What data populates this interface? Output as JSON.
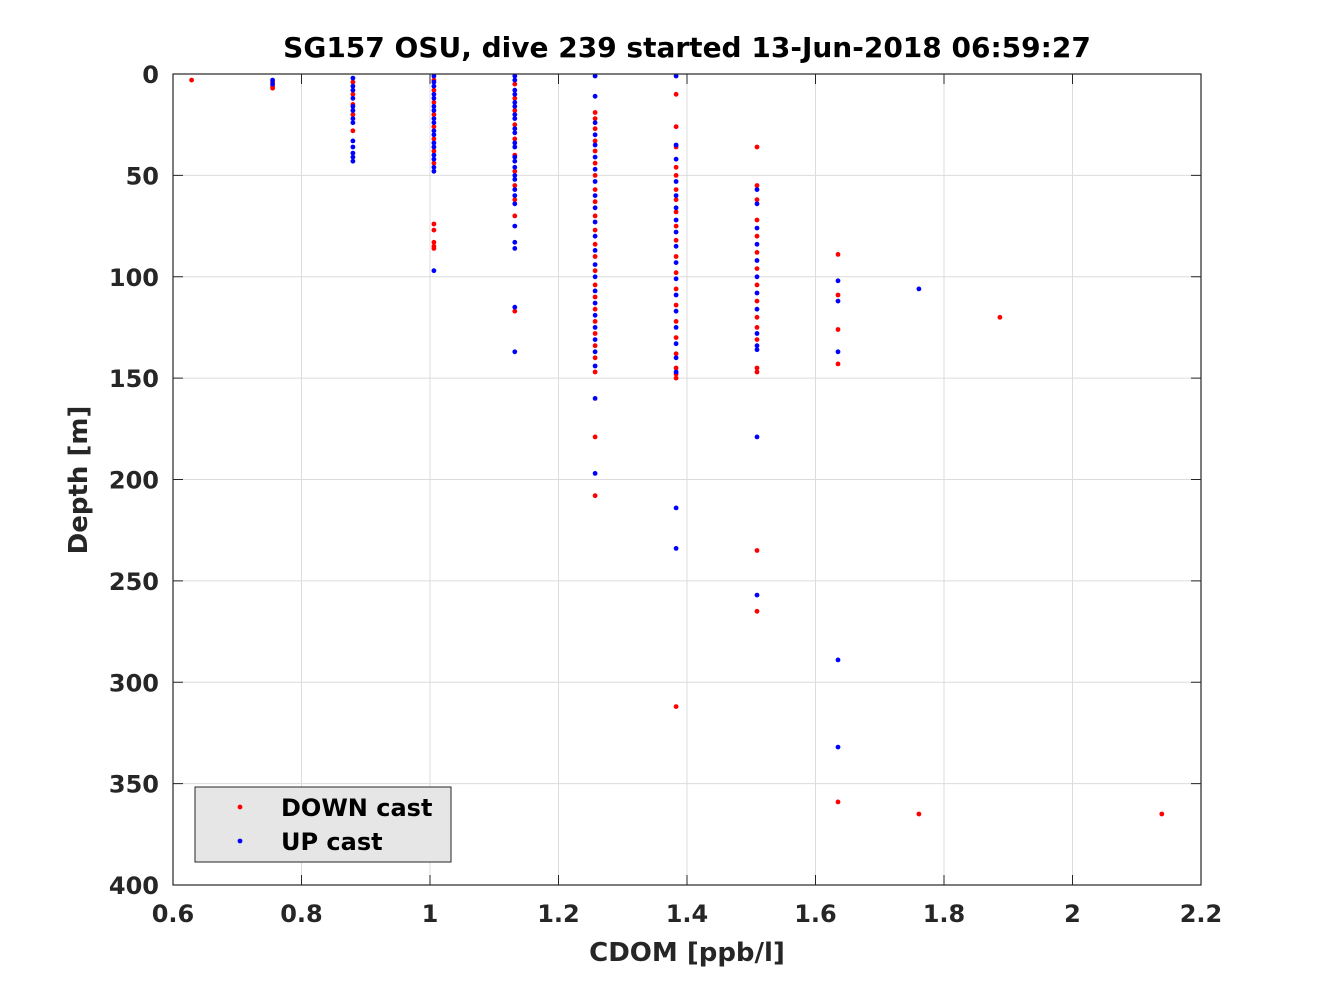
{
  "chart_data": {
    "type": "scatter",
    "title": "SG157 OSU, dive 239 started 13-Jun-2018 06:59:27",
    "xlabel": "CDOM [ppb/l]",
    "ylabel": "Depth [m]",
    "xlim": [
      0.6,
      2.2
    ],
    "ylim": [
      0,
      400
    ],
    "y_reversed": true,
    "grid": true,
    "legend_position": "bottom-left",
    "xticks": [
      0.6,
      0.8,
      1.0,
      1.2,
      1.4,
      1.6,
      1.8,
      2.0,
      2.2
    ],
    "xtick_labels": [
      "0.6",
      "0.8",
      "1",
      "1.2",
      "1.4",
      "1.6",
      "1.8",
      "2",
      "2.2"
    ],
    "yticks": [
      0,
      50,
      100,
      150,
      200,
      250,
      300,
      350,
      400
    ],
    "ytick_labels": [
      "0",
      "50",
      "100",
      "150",
      "200",
      "250",
      "300",
      "350",
      "400"
    ],
    "series": [
      {
        "name": "DOWN cast",
        "color": "#ff0000",
        "points": [
          [
            0.629,
            3
          ],
          [
            0.755,
            4
          ],
          [
            0.755,
            6
          ],
          [
            0.755,
            7
          ],
          [
            0.88,
            4
          ],
          [
            0.88,
            10
          ],
          [
            0.88,
            15
          ],
          [
            0.88,
            20
          ],
          [
            0.88,
            28
          ],
          [
            1.006,
            3
          ],
          [
            1.006,
            8
          ],
          [
            1.006,
            14
          ],
          [
            1.006,
            20
          ],
          [
            1.006,
            26
          ],
          [
            1.006,
            32
          ],
          [
            1.006,
            38
          ],
          [
            1.006,
            44
          ],
          [
            1.006,
            74
          ],
          [
            1.006,
            77
          ],
          [
            1.006,
            83
          ],
          [
            1.006,
            85
          ],
          [
            1.006,
            86
          ],
          [
            1.132,
            5
          ],
          [
            1.132,
            12
          ],
          [
            1.132,
            18
          ],
          [
            1.132,
            25
          ],
          [
            1.132,
            32
          ],
          [
            1.132,
            40
          ],
          [
            1.132,
            48
          ],
          [
            1.132,
            55
          ],
          [
            1.132,
            62
          ],
          [
            1.132,
            70
          ],
          [
            1.132,
            117
          ],
          [
            1.257,
            19
          ],
          [
            1.257,
            22
          ],
          [
            1.257,
            27
          ],
          [
            1.257,
            33
          ],
          [
            1.257,
            38
          ],
          [
            1.257,
            44
          ],
          [
            1.257,
            50
          ],
          [
            1.257,
            57
          ],
          [
            1.257,
            63
          ],
          [
            1.257,
            70
          ],
          [
            1.257,
            77
          ],
          [
            1.257,
            84
          ],
          [
            1.257,
            90
          ],
          [
            1.257,
            97
          ],
          [
            1.257,
            104
          ],
          [
            1.257,
            110
          ],
          [
            1.257,
            116
          ],
          [
            1.257,
            122
          ],
          [
            1.257,
            128
          ],
          [
            1.257,
            134
          ],
          [
            1.257,
            140
          ],
          [
            1.257,
            147
          ],
          [
            1.257,
            179
          ],
          [
            1.257,
            208
          ],
          [
            1.383,
            10
          ],
          [
            1.383,
            26
          ],
          [
            1.383,
            36
          ],
          [
            1.383,
            46
          ],
          [
            1.383,
            50
          ],
          [
            1.383,
            57
          ],
          [
            1.383,
            62
          ],
          [
            1.383,
            68
          ],
          [
            1.383,
            75
          ],
          [
            1.383,
            82
          ],
          [
            1.383,
            90
          ],
          [
            1.383,
            98
          ],
          [
            1.383,
            106
          ],
          [
            1.383,
            114
          ],
          [
            1.383,
            122
          ],
          [
            1.383,
            130
          ],
          [
            1.383,
            138
          ],
          [
            1.383,
            145
          ],
          [
            1.383,
            148
          ],
          [
            1.383,
            150
          ],
          [
            1.383,
            312
          ],
          [
            1.509,
            36
          ],
          [
            1.509,
            55
          ],
          [
            1.509,
            62
          ],
          [
            1.509,
            72
          ],
          [
            1.509,
            80
          ],
          [
            1.509,
            88
          ],
          [
            1.509,
            96
          ],
          [
            1.509,
            104
          ],
          [
            1.509,
            112
          ],
          [
            1.509,
            120
          ],
          [
            1.509,
            125
          ],
          [
            1.509,
            131
          ],
          [
            1.509,
            145
          ],
          [
            1.509,
            147
          ],
          [
            1.509,
            235
          ],
          [
            1.509,
            265
          ],
          [
            1.635,
            89
          ],
          [
            1.635,
            109
          ],
          [
            1.635,
            126
          ],
          [
            1.635,
            143
          ],
          [
            1.635,
            359
          ],
          [
            1.761,
            365
          ],
          [
            1.887,
            120
          ],
          [
            2.139,
            365
          ]
        ]
      },
      {
        "name": "UP cast",
        "color": "#0000ff",
        "points": [
          [
            0.755,
            3
          ],
          [
            0.755,
            5
          ],
          [
            0.88,
            2
          ],
          [
            0.88,
            6
          ],
          [
            0.88,
            8
          ],
          [
            0.88,
            12
          ],
          [
            0.88,
            16
          ],
          [
            0.88,
            18
          ],
          [
            0.88,
            22
          ],
          [
            0.88,
            24
          ],
          [
            0.88,
            33
          ],
          [
            0.88,
            36
          ],
          [
            0.88,
            39
          ],
          [
            0.88,
            41
          ],
          [
            0.88,
            43
          ],
          [
            1.006,
            1
          ],
          [
            1.006,
            4
          ],
          [
            1.006,
            6
          ],
          [
            1.006,
            10
          ],
          [
            1.006,
            12
          ],
          [
            1.006,
            16
          ],
          [
            1.006,
            18
          ],
          [
            1.006,
            22
          ],
          [
            1.006,
            24
          ],
          [
            1.006,
            28
          ],
          [
            1.006,
            30
          ],
          [
            1.006,
            34
          ],
          [
            1.006,
            36
          ],
          [
            1.006,
            40
          ],
          [
            1.006,
            42
          ],
          [
            1.006,
            46
          ],
          [
            1.006,
            48
          ],
          [
            1.006,
            97
          ],
          [
            1.132,
            1
          ],
          [
            1.132,
            3
          ],
          [
            1.132,
            8
          ],
          [
            1.132,
            10
          ],
          [
            1.132,
            14
          ],
          [
            1.132,
            16
          ],
          [
            1.132,
            20
          ],
          [
            1.132,
            22
          ],
          [
            1.132,
            27
          ],
          [
            1.132,
            29
          ],
          [
            1.132,
            34
          ],
          [
            1.132,
            36
          ],
          [
            1.132,
            41
          ],
          [
            1.132,
            43
          ],
          [
            1.132,
            46
          ],
          [
            1.132,
            50
          ],
          [
            1.132,
            52
          ],
          [
            1.132,
            57
          ],
          [
            1.132,
            60
          ],
          [
            1.132,
            64
          ],
          [
            1.132,
            75
          ],
          [
            1.132,
            83
          ],
          [
            1.132,
            86
          ],
          [
            1.132,
            115
          ],
          [
            1.132,
            137
          ],
          [
            1.257,
            1
          ],
          [
            1.257,
            11
          ],
          [
            1.257,
            24
          ],
          [
            1.257,
            30
          ],
          [
            1.257,
            35
          ],
          [
            1.257,
            41
          ],
          [
            1.257,
            47
          ],
          [
            1.257,
            53
          ],
          [
            1.257,
            60
          ],
          [
            1.257,
            66
          ],
          [
            1.257,
            73
          ],
          [
            1.257,
            80
          ],
          [
            1.257,
            87
          ],
          [
            1.257,
            94
          ],
          [
            1.257,
            100
          ],
          [
            1.257,
            107
          ],
          [
            1.257,
            113
          ],
          [
            1.257,
            119
          ],
          [
            1.257,
            125
          ],
          [
            1.257,
            131
          ],
          [
            1.257,
            137
          ],
          [
            1.257,
            144
          ],
          [
            1.257,
            160
          ],
          [
            1.257,
            197
          ],
          [
            1.383,
            1
          ],
          [
            1.383,
            35
          ],
          [
            1.383,
            42
          ],
          [
            1.383,
            53
          ],
          [
            1.383,
            60
          ],
          [
            1.383,
            66
          ],
          [
            1.383,
            72
          ],
          [
            1.383,
            78
          ],
          [
            1.383,
            85
          ],
          [
            1.383,
            93
          ],
          [
            1.383,
            101
          ],
          [
            1.383,
            109
          ],
          [
            1.383,
            117
          ],
          [
            1.383,
            125
          ],
          [
            1.383,
            133
          ],
          [
            1.383,
            140
          ],
          [
            1.383,
            147
          ],
          [
            1.383,
            214
          ],
          [
            1.383,
            234
          ],
          [
            1.509,
            57
          ],
          [
            1.509,
            64
          ],
          [
            1.509,
            76
          ],
          [
            1.509,
            84
          ],
          [
            1.509,
            92
          ],
          [
            1.509,
            100
          ],
          [
            1.509,
            108
          ],
          [
            1.509,
            116
          ],
          [
            1.509,
            128
          ],
          [
            1.509,
            134
          ],
          [
            1.509,
            136
          ],
          [
            1.509,
            179
          ],
          [
            1.509,
            257
          ],
          [
            1.635,
            102
          ],
          [
            1.635,
            112
          ],
          [
            1.635,
            137
          ],
          [
            1.635,
            289
          ],
          [
            1.635,
            332
          ],
          [
            1.761,
            106
          ]
        ]
      }
    ]
  }
}
